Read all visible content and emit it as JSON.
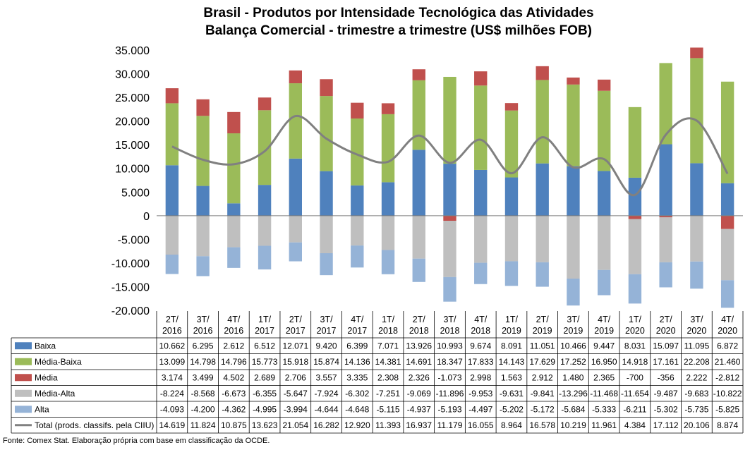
{
  "chart_data": {
    "type": "bar",
    "title": "Brasil - Produtos por Intensidade Tecnológica das Atividades",
    "subtitle": "Balança Comercial - trimestre a trimestre (US$ milhões FOB)",
    "categories": [
      "2T/ 2016",
      "3T/ 2016",
      "4T/ 2016",
      "1T/ 2017",
      "2T/ 2017",
      "3T/ 2017",
      "4T/ 2017",
      "1T/ 2018",
      "2T/ 2018",
      "3T/ 2018",
      "4T/ 2018",
      "1T/ 2019",
      "2T/ 2019",
      "3T/ 2019",
      "4T/ 2019",
      "1T/ 2020",
      "2T/ 2020",
      "3T/ 2020",
      "4T/ 2020"
    ],
    "ylim": [
      -20000,
      35000
    ],
    "yticks": [
      "35.000",
      "30.000",
      "25.000",
      "20.000",
      "15.000",
      "10.000",
      "5.000",
      "0",
      "-5.000",
      "-10.000",
      "-15.000",
      "-20.000"
    ],
    "legend_placement": "data-table",
    "series": [
      {
        "name": "Baixa",
        "kind": "bar",
        "color": "#4f81bd",
        "values": [
          10662,
          6295,
          2612,
          6512,
          12071,
          9420,
          6399,
          7071,
          13926,
          10993,
          9674,
          8091,
          11051,
          10466,
          9447,
          8031,
          15097,
          11095,
          6872
        ],
        "labels": [
          "10.662",
          "6.295",
          "2.612",
          "6.512",
          "12.071",
          "9.420",
          "6.399",
          "7.071",
          "13.926",
          "10.993",
          "9.674",
          "8.091",
          "11.051",
          "10.466",
          "9.447",
          "8.031",
          "15.097",
          "11.095",
          "6.872"
        ]
      },
      {
        "name": "Média-Baixa",
        "kind": "bar",
        "color": "#9bbb59",
        "values": [
          13099,
          14798,
          14796,
          15773,
          15918,
          15874,
          14136,
          14381,
          14691,
          18347,
          17833,
          14143,
          17629,
          17252,
          16950,
          14918,
          17161,
          22208,
          21460
        ],
        "labels": [
          "13.099",
          "14.798",
          "14.796",
          "15.773",
          "15.918",
          "15.874",
          "14.136",
          "14.381",
          "14.691",
          "18.347",
          "17.833",
          "14.143",
          "17.629",
          "17.252",
          "16.950",
          "14.918",
          "17.161",
          "22.208",
          "21.460"
        ]
      },
      {
        "name": "Média",
        "kind": "bar",
        "color": "#c0504d",
        "values": [
          3174,
          3499,
          4502,
          2689,
          2706,
          3557,
          3335,
          2308,
          2326,
          -1073,
          2998,
          1563,
          2912,
          1480,
          2365,
          -700,
          -356,
          2222,
          -2812
        ],
        "labels": [
          "3.174",
          "3.499",
          "4.502",
          "2.689",
          "2.706",
          "3.557",
          "3.335",
          "2.308",
          "2.326",
          "-1.073",
          "2.998",
          "1.563",
          "2.912",
          "1.480",
          "2.365",
          "-700",
          "-356",
          "2.222",
          "-2.812"
        ]
      },
      {
        "name": "Média-Alta",
        "kind": "bar",
        "color": "#bfbfbf",
        "values": [
          -8224,
          -8568,
          -6673,
          -6355,
          -5647,
          -7924,
          -6302,
          -7251,
          -9069,
          -11896,
          -9953,
          -9631,
          -9841,
          -13296,
          -11468,
          -11654,
          -9487,
          -9683,
          -10822
        ],
        "labels": [
          "-8.224",
          "-8.568",
          "-6.673",
          "-6.355",
          "-5.647",
          "-7.924",
          "-6.302",
          "-7.251",
          "-9.069",
          "-11.896",
          "-9.953",
          "-9.631",
          "-9.841",
          "-13.296",
          "-11.468",
          "-11.654",
          "-9.487",
          "-9.683",
          "-10.822"
        ]
      },
      {
        "name": "Alta",
        "kind": "bar",
        "color": "#95b3d7",
        "values": [
          -4093,
          -4200,
          -4362,
          -4995,
          -3994,
          -4644,
          -4648,
          -5115,
          -4937,
          -5193,
          -4497,
          -5202,
          -5172,
          -5684,
          -5333,
          -6211,
          -5302,
          -5735,
          -5825
        ],
        "labels": [
          "-4.093",
          "-4.200",
          "-4.362",
          "-4.995",
          "-3.994",
          "-4.644",
          "-4.648",
          "-5.115",
          "-4.937",
          "-5.193",
          "-4.497",
          "-5.202",
          "-5.172",
          "-5.684",
          "-5.333",
          "-6.211",
          "-5.302",
          "-5.735",
          "-5.825"
        ]
      },
      {
        "name": "Total (prods. classifs. pela CIIU)",
        "kind": "line",
        "color": "#808080",
        "values": [
          14619,
          11824,
          10875,
          13623,
          21054,
          16282,
          12920,
          11393,
          16937,
          11179,
          16055,
          8964,
          16578,
          10219,
          11961,
          4384,
          17112,
          20106,
          8874
        ],
        "labels": [
          "14.619",
          "11.824",
          "10.875",
          "13.623",
          "21.054",
          "16.282",
          "12.920",
          "11.393",
          "16.937",
          "11.179",
          "16.055",
          "8.964",
          "16.578",
          "10.219",
          "11.961",
          "4.384",
          "17.112",
          "20.106",
          "8.874"
        ]
      }
    ],
    "source": "Fonte: Comex Stat. Elaboração própria com base em classificação da OCDE."
  }
}
